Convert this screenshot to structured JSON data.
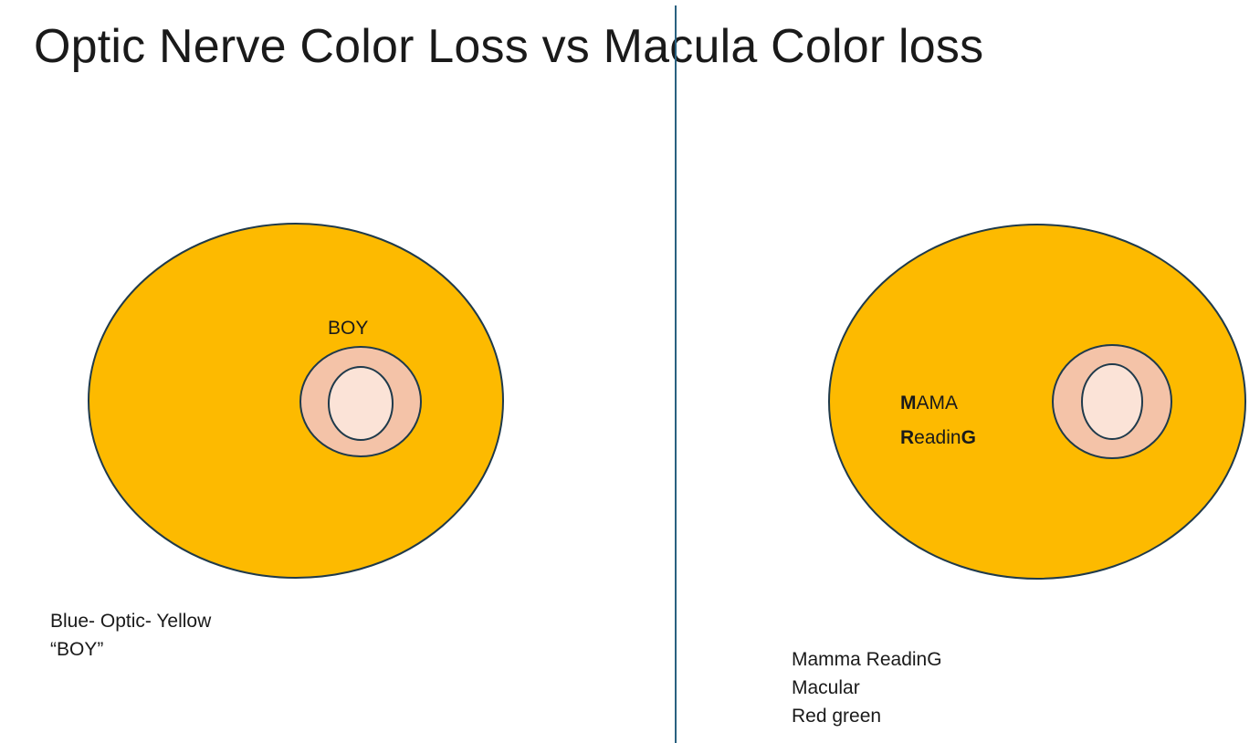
{
  "title": "Optic Nerve Color Loss vs Macula Color loss",
  "colors": {
    "outer_fill": "#FDBA00",
    "ring_fill": "#F4C3A8",
    "center_fill": "#FBE3D7",
    "outline": "#1F3A4B",
    "divider": "#2A6180"
  },
  "left": {
    "label": "BOY",
    "caption": {
      "line1": "Blue- Optic- Yellow",
      "line2": "“BOY”"
    }
  },
  "right": {
    "label": {
      "line1_bold": "M",
      "line1_rest": "AMA",
      "line2_bold_start": "R",
      "line2_middle": "eadin",
      "line2_bold_end": "G"
    },
    "caption": {
      "line1": "Mamma ReadinG",
      "line2": "Macular",
      "line3": "Red green"
    }
  }
}
